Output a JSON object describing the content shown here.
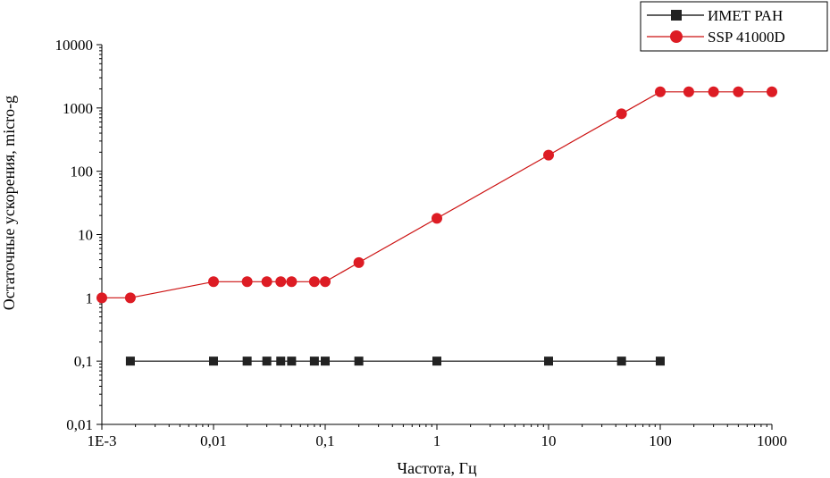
{
  "chart_data": {
    "type": "line",
    "title": "",
    "xlabel": "Частота, Гц",
    "ylabel": "Остаточные ускорения, micro-g",
    "xscale": "log",
    "yscale": "log",
    "xlim": [
      0.001,
      1000
    ],
    "ylim": [
      0.01,
      10000
    ],
    "xticks": [
      0.001,
      0.01,
      0.1,
      1,
      10,
      100,
      1000
    ],
    "xtick_labels": [
      "1E-3",
      "0,01",
      "0,1",
      "1",
      "10",
      "100",
      "1000"
    ],
    "yticks": [
      0.01,
      0.1,
      1,
      10,
      100,
      1000,
      10000
    ],
    "ytick_labels": [
      "0,01",
      "0,1",
      "1",
      "10",
      "100",
      "1000",
      "10000"
    ],
    "grid": false,
    "legend_position": "top-right",
    "series": [
      {
        "name": "ИМЕТ РАН",
        "marker": "square",
        "color": "#000000",
        "marker_color": "#222222",
        "x": [
          0.0018,
          0.01,
          0.02,
          0.03,
          0.04,
          0.05,
          0.08,
          0.1,
          0.2,
          1,
          10,
          45,
          100
        ],
        "y": [
          0.1,
          0.1,
          0.1,
          0.1,
          0.1,
          0.1,
          0.1,
          0.1,
          0.1,
          0.1,
          0.1,
          0.1,
          0.1
        ]
      },
      {
        "name": "SSP 41000D",
        "marker": "circle",
        "color": "#cc1111",
        "marker_color": "#dd1c24",
        "x": [
          0.001,
          0.0018,
          0.01,
          0.02,
          0.03,
          0.04,
          0.05,
          0.08,
          0.1,
          0.2,
          1,
          10,
          45,
          100,
          180,
          300,
          500,
          1000
        ],
        "y": [
          1,
          1,
          1.8,
          1.8,
          1.8,
          1.8,
          1.8,
          1.8,
          1.8,
          3.6,
          18,
          180,
          810,
          1800,
          1800,
          1800,
          1800,
          1800
        ]
      }
    ]
  }
}
